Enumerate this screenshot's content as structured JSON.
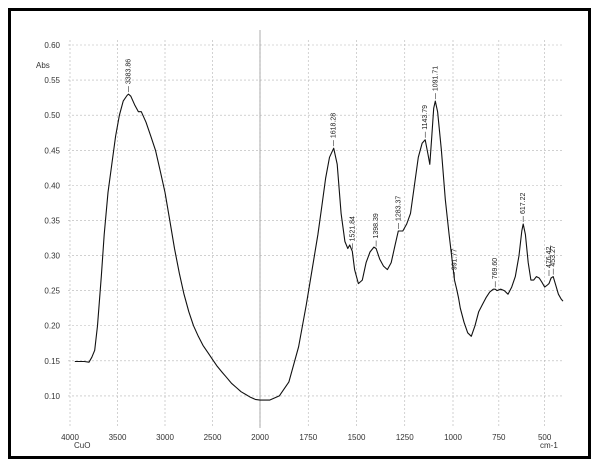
{
  "chart_data": {
    "type": "line",
    "title": "",
    "ylabel": "Abs",
    "xlabel_left": "CuO",
    "xlabel_right": "cm-1",
    "xlim": [
      4000,
      400
    ],
    "ylim": [
      0.06,
      0.6
    ],
    "grid": true,
    "x_ticks": [
      {
        "value": 4000,
        "label": "4000"
      },
      {
        "value": 3500,
        "label": "3500"
      },
      {
        "value": 3000,
        "label": "3000"
      },
      {
        "value": 2500,
        "label": "2500"
      },
      {
        "value": 2000,
        "label": "2000"
      },
      {
        "value": 1750,
        "label": "1750"
      },
      {
        "value": 1500,
        "label": "1500"
      },
      {
        "value": 1250,
        "label": "1250"
      },
      {
        "value": 1000,
        "label": "1000"
      },
      {
        "value": 750,
        "label": "750"
      },
      {
        "value": 500,
        "label": "500"
      }
    ],
    "y_ticks": [
      {
        "value": 0.6,
        "label": "0.60"
      },
      {
        "value": 0.55,
        "label": "0.55"
      },
      {
        "value": 0.5,
        "label": "0.50"
      },
      {
        "value": 0.45,
        "label": "0.45"
      },
      {
        "value": 0.4,
        "label": "0.40"
      },
      {
        "value": 0.35,
        "label": "0.35"
      },
      {
        "value": 0.3,
        "label": "0.30"
      },
      {
        "value": 0.25,
        "label": "0.25"
      },
      {
        "value": 0.2,
        "label": "0.20"
      },
      {
        "value": 0.15,
        "label": "0.15"
      },
      {
        "value": 0.1,
        "label": "0.10"
      }
    ],
    "series": [
      {
        "x": [
          3950,
          3850,
          3800,
          3770,
          3740,
          3710,
          3670,
          3640,
          3600,
          3560,
          3520,
          3480,
          3440,
          3400,
          3383.86,
          3360,
          3320,
          3280,
          3250,
          3200,
          3150,
          3100,
          3050,
          3000,
          2950,
          2900,
          2850,
          2800,
          2750,
          2700,
          2650,
          2600,
          2550,
          2500,
          2450,
          2400,
          2350,
          2300,
          2250,
          2200,
          2150,
          2100,
          2050,
          2000,
          1950,
          1900,
          1850,
          1800,
          1760,
          1730,
          1700,
          1680,
          1660,
          1640,
          1618.28,
          1600,
          1580,
          1560,
          1545,
          1535,
          1521.84,
          1510,
          1490,
          1470,
          1450,
          1430,
          1410,
          1398.39,
          1380,
          1360,
          1340,
          1320,
          1300,
          1283.37,
          1260,
          1240,
          1220,
          1200,
          1180,
          1160,
          1143.79,
          1130,
          1120,
          1110,
          1100,
          1091.71,
          1080,
          1060,
          1040,
          1020,
          1005,
          991.77,
          980,
          970,
          960,
          940,
          920,
          900,
          880,
          860,
          840,
          820,
          800,
          780,
          769.6,
          760,
          740,
          720,
          700,
          680,
          660,
          640,
          625,
          617.22,
          605,
          590,
          575,
          560,
          545,
          530,
          515,
          500,
          485,
          476.42,
          465,
          453.27,
          440,
          425,
          410,
          400
        ],
        "y": [
          0.149,
          0.149,
          0.148,
          0.155,
          0.165,
          0.2,
          0.27,
          0.33,
          0.39,
          0.43,
          0.47,
          0.5,
          0.52,
          0.528,
          0.53,
          0.527,
          0.515,
          0.505,
          0.505,
          0.49,
          0.47,
          0.45,
          0.42,
          0.39,
          0.35,
          0.31,
          0.275,
          0.245,
          0.22,
          0.2,
          0.185,
          0.172,
          0.162,
          0.152,
          0.142,
          0.134,
          0.126,
          0.118,
          0.112,
          0.106,
          0.102,
          0.098,
          0.095,
          0.094,
          0.094,
          0.1,
          0.12,
          0.17,
          0.23,
          0.28,
          0.33,
          0.37,
          0.41,
          0.44,
          0.453,
          0.43,
          0.36,
          0.32,
          0.31,
          0.315,
          0.306,
          0.28,
          0.26,
          0.265,
          0.29,
          0.305,
          0.312,
          0.31,
          0.295,
          0.285,
          0.28,
          0.29,
          0.315,
          0.335,
          0.335,
          0.345,
          0.36,
          0.4,
          0.44,
          0.46,
          0.465,
          0.445,
          0.43,
          0.47,
          0.51,
          0.52,
          0.505,
          0.45,
          0.38,
          0.33,
          0.295,
          0.265,
          0.252,
          0.24,
          0.225,
          0.205,
          0.19,
          0.185,
          0.2,
          0.22,
          0.23,
          0.24,
          0.248,
          0.252,
          0.252,
          0.25,
          0.252,
          0.25,
          0.245,
          0.255,
          0.27,
          0.3,
          0.335,
          0.345,
          0.33,
          0.29,
          0.265,
          0.265,
          0.27,
          0.268,
          0.262,
          0.255,
          0.258,
          0.26,
          0.268,
          0.27,
          0.258,
          0.245,
          0.238,
          0.235
        ]
      }
    ],
    "peak_labels": [
      {
        "x": 3383.86,
        "y": 0.53,
        "label": "3383.86"
      },
      {
        "x": 1618.28,
        "y": 0.453,
        "label": "1618.28"
      },
      {
        "x": 1521.84,
        "y": 0.306,
        "label": "1521.84"
      },
      {
        "x": 1398.39,
        "y": 0.31,
        "label": "1398.39"
      },
      {
        "x": 1283.37,
        "y": 0.335,
        "label": "1283.37"
      },
      {
        "x": 1143.79,
        "y": 0.465,
        "label": "1143.79"
      },
      {
        "x": 1091.71,
        "y": 0.52,
        "label": "1091.71"
      },
      {
        "x": 991.77,
        "y": 0.265,
        "label": "991.77"
      },
      {
        "x": 769.6,
        "y": 0.252,
        "label": "769.60"
      },
      {
        "x": 617.22,
        "y": 0.345,
        "label": "617.22"
      },
      {
        "x": 476.42,
        "y": 0.268,
        "label": "476.42"
      },
      {
        "x": 453.27,
        "y": 0.27,
        "label": "453.27"
      }
    ],
    "colors": {
      "line": "#111111",
      "grid": "#b5b5b5",
      "divider": "#9a9a9a"
    }
  }
}
